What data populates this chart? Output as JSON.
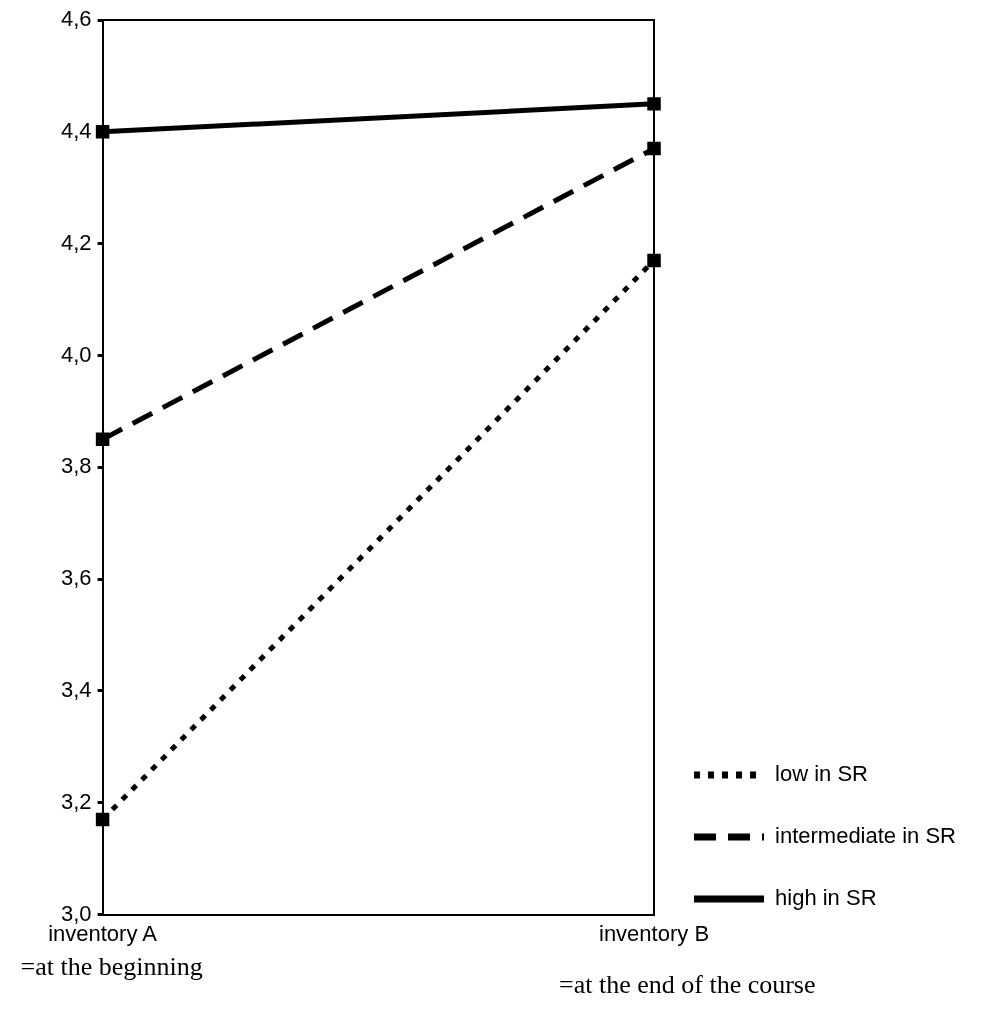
{
  "chart_data": {
    "type": "line",
    "categories": [
      "inventory A",
      "inventory B"
    ],
    "series": [
      {
        "name": "low in SR",
        "color": "#000000",
        "values": [
          3.17,
          4.17
        ],
        "line_style": "dotted"
      },
      {
        "name": "intermediate in SR",
        "color": "#000000",
        "values": [
          3.85,
          4.37
        ],
        "line_style": "dashed"
      },
      {
        "name": "high in SR",
        "color": "#000000",
        "values": [
          4.4,
          4.45
        ],
        "line_style": "solid"
      }
    ],
    "ylim": [
      3.0,
      4.6
    ],
    "yticks": [
      {
        "value": 3.0,
        "label": "3,0"
      },
      {
        "value": 3.2,
        "label": "3,2"
      },
      {
        "value": 3.4,
        "label": "3,4"
      },
      {
        "value": 3.6,
        "label": "3,6"
      },
      {
        "value": 3.8,
        "label": "3,8"
      },
      {
        "value": 4.0,
        "label": "4,0"
      },
      {
        "value": 4.2,
        "label": "4,2"
      },
      {
        "value": 4.4,
        "label": "4,4"
      },
      {
        "value": 4.6,
        "label": "4,6"
      }
    ],
    "grid": false,
    "legend": "right",
    "marker": "square",
    "annotations": [
      "=at the beginning",
      "=at the end of the course"
    ]
  }
}
